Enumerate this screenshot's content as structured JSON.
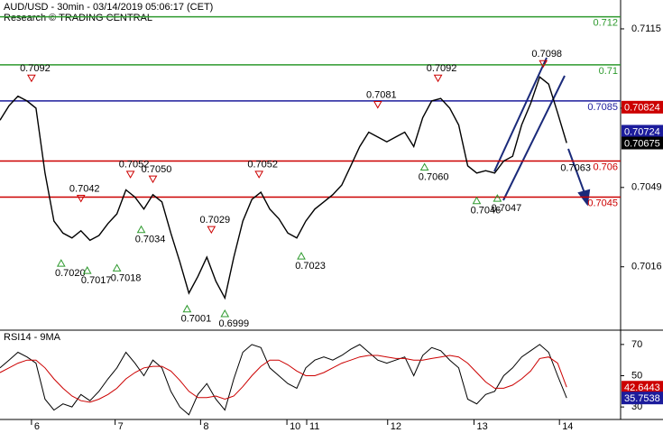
{
  "chart_data": [
    {
      "type": "line",
      "title": "AUD/USD - 30min - 03/14/2019 05:06:17 (CET)",
      "subtitle": "Research © TRADING CENTRAL",
      "x": [
        0,
        1,
        2,
        3,
        4,
        5,
        6,
        7,
        8,
        9,
        10,
        11,
        12,
        13,
        14,
        15,
        16,
        17,
        18,
        19,
        20,
        21,
        22,
        23,
        24,
        25,
        26,
        27,
        28,
        29,
        30,
        31,
        32,
        33,
        34,
        35,
        36,
        37,
        38,
        39,
        40,
        41,
        42,
        43,
        44,
        45,
        46,
        47,
        48,
        49,
        50,
        51,
        52,
        53,
        54,
        55,
        56,
        57,
        58,
        59,
        60,
        61,
        62,
        63
      ],
      "series": [
        {
          "name": "AUD/USD",
          "color": "#000000",
          "values": [
            0.7077,
            0.7083,
            0.7087,
            0.7085,
            0.7082,
            0.7055,
            0.7035,
            0.703,
            0.7028,
            0.7031,
            0.7027,
            0.7029,
            0.7034,
            0.7038,
            0.7048,
            0.7045,
            0.704,
            0.7046,
            0.7043,
            0.703,
            0.7018,
            0.7005,
            0.7012,
            0.702,
            0.701,
            0.7003,
            0.702,
            0.7035,
            0.7044,
            0.7047,
            0.704,
            0.7036,
            0.703,
            0.7028,
            0.7035,
            0.704,
            0.7043,
            0.7046,
            0.705,
            0.7058,
            0.7066,
            0.7072,
            0.707,
            0.7068,
            0.707,
            0.7072,
            0.7066,
            0.7078,
            0.7085,
            0.7086,
            0.7082,
            0.7075,
            0.7058,
            0.7055,
            0.7056,
            0.7055,
            0.706,
            0.7062,
            0.7075,
            0.7084,
            0.7095,
            0.7092,
            0.708,
            0.70675
          ]
        }
      ],
      "xlim": [
        0,
        69
      ],
      "ylim": [
        0.699,
        0.7127
      ],
      "yticks": [
        0.7016,
        0.7049,
        0.7082,
        0.7115
      ],
      "levels": [
        {
          "value": 0.712,
          "color": "#2e9a2e"
        },
        {
          "value": 0.71,
          "color": "#2e9a2e"
        },
        {
          "value": 0.7085,
          "color": "#1c1c9c"
        },
        {
          "value": 0.706,
          "color": "#cc0000"
        },
        {
          "value": 0.7045,
          "color": "#cc0000"
        }
      ],
      "price_tags": [
        {
          "value": 0.70824,
          "color": "#cc0000"
        },
        {
          "value": 0.70724,
          "color": "#1c1c9c"
        },
        {
          "value": 0.70675,
          "color": "#000000"
        }
      ],
      "annotations": [
        {
          "x": 3.5,
          "y": 0.7092,
          "label": "0.7092",
          "marker": "down"
        },
        {
          "x": 9,
          "y": 0.7042,
          "label": "0.7042",
          "marker": "down"
        },
        {
          "x": 14.5,
          "y": 0.7052,
          "label": "0.7052",
          "marker": "down"
        },
        {
          "x": 17,
          "y": 0.705,
          "label": "0.7050",
          "marker": "down"
        },
        {
          "x": 15.7,
          "y": 0.7034,
          "label": "0.7034",
          "marker": "up"
        },
        {
          "x": 6.8,
          "y": 0.702,
          "label": "0.7020",
          "marker": "up"
        },
        {
          "x": 9.7,
          "y": 0.7017,
          "label": "0.7017",
          "marker": "up"
        },
        {
          "x": 13,
          "y": 0.7018,
          "label": "0.7018",
          "marker": "up"
        },
        {
          "x": 20.8,
          "y": 0.7001,
          "label": "0.7001",
          "marker": "up"
        },
        {
          "x": 25,
          "y": 0.6999,
          "label": "0.6999",
          "marker": "up"
        },
        {
          "x": 23.5,
          "y": 0.7029,
          "label": "0.7029",
          "marker": "down"
        },
        {
          "x": 28.8,
          "y": 0.7052,
          "label": "0.7052",
          "marker": "down"
        },
        {
          "x": 33.5,
          "y": 0.7023,
          "label": "0.7023",
          "marker": "up"
        },
        {
          "x": 42,
          "y": 0.7081,
          "label": "0.7081",
          "marker": "down"
        },
        {
          "x": 47.2,
          "y": 0.706,
          "label": "0.7060",
          "marker": "up"
        },
        {
          "x": 48.7,
          "y": 0.7092,
          "label": "0.7092",
          "marker": "down"
        },
        {
          "x": 53,
          "y": 0.7046,
          "label": "0.7046",
          "marker": "up"
        },
        {
          "x": 55.3,
          "y": 0.7047,
          "label": "0.7047",
          "marker": "up"
        },
        {
          "x": 60.4,
          "y": 0.7098,
          "label": "0.7098",
          "marker": "down"
        },
        {
          "x": 64,
          "y": 0.7063,
          "label": "0.7063"
        }
      ]
    },
    {
      "type": "line",
      "title": "RSI14 - 9MA",
      "x": [
        0,
        1,
        2,
        3,
        4,
        5,
        6,
        7,
        8,
        9,
        10,
        11,
        12,
        13,
        14,
        15,
        16,
        17,
        18,
        19,
        20,
        21,
        22,
        23,
        24,
        25,
        26,
        27,
        28,
        29,
        30,
        31,
        32,
        33,
        34,
        35,
        36,
        37,
        38,
        39,
        40,
        41,
        42,
        43,
        44,
        45,
        46,
        47,
        48,
        49,
        50,
        51,
        52,
        53,
        54,
        55,
        56,
        57,
        58,
        59,
        60,
        61,
        62,
        63
      ],
      "series": [
        {
          "name": "RSI14",
          "color": "#000000",
          "values": [
            55,
            60,
            65,
            62,
            58,
            35,
            28,
            32,
            30,
            38,
            34,
            40,
            48,
            55,
            65,
            58,
            50,
            60,
            55,
            40,
            30,
            25,
            38,
            45,
            35,
            28,
            48,
            65,
            70,
            68,
            55,
            50,
            45,
            42,
            55,
            60,
            62,
            60,
            63,
            67,
            70,
            65,
            60,
            58,
            60,
            62,
            50,
            63,
            68,
            66,
            60,
            55,
            35,
            32,
            38,
            40,
            50,
            55,
            62,
            66,
            70,
            65,
            50,
            35.7538
          ]
        },
        {
          "name": "9MA",
          "color": "#cc0000",
          "values": [
            52,
            55,
            58,
            60,
            60,
            55,
            48,
            42,
            37,
            34,
            33,
            35,
            38,
            42,
            48,
            52,
            55,
            56,
            56,
            53,
            47,
            40,
            36,
            36,
            37,
            35,
            37,
            43,
            50,
            56,
            60,
            60,
            57,
            53,
            50,
            50,
            52,
            55,
            58,
            60,
            62,
            63,
            63,
            62,
            61,
            61,
            60,
            60,
            61,
            62,
            63,
            62,
            58,
            52,
            46,
            42,
            42,
            44,
            48,
            53,
            61,
            62,
            58,
            42.6443
          ]
        }
      ],
      "xlim": [
        0,
        69
      ],
      "ylim": [
        22,
        78
      ],
      "yticks": [
        30,
        50,
        70
      ],
      "xticks": [
        {
          "value": 3.5,
          "label": "6"
        },
        {
          "value": 12.8,
          "label": "7"
        },
        {
          "value": 22.3,
          "label": "8"
        },
        {
          "value": 31.9,
          "label": "10"
        },
        {
          "value": 34.1,
          "label": "11"
        },
        {
          "value": 43.1,
          "label": "12"
        },
        {
          "value": 52.7,
          "label": "13"
        },
        {
          "value": 62.2,
          "label": "14"
        }
      ],
      "price_tags": [
        {
          "value": 42.6443,
          "color": "#cc0000"
        },
        {
          "value": 35.7538,
          "color": "#1c1c9c"
        }
      ]
    }
  ]
}
